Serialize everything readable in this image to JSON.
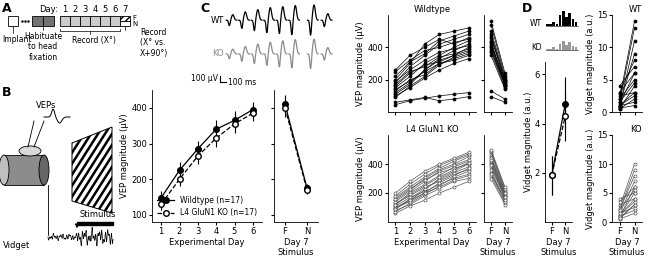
{
  "panel_labels": [
    "A",
    "B",
    "C",
    "D"
  ],
  "timeline": {
    "day_label": "Day:",
    "days": [
      1,
      2,
      3,
      4,
      5,
      6,
      7
    ],
    "implant": "Implant",
    "habituate": "Habituate\nto head\nfixation",
    "record": "Record (X°)",
    "record_day7": "Record\n(X° vs.\nX+90°)",
    "F": "F",
    "N": "N"
  },
  "schematic": {
    "veps": "VEPs",
    "vidget": "Vidget",
    "stimulus": "Stimulus"
  },
  "traces": {
    "wt": "WT",
    "ko": "KO",
    "scale_bars": [
      {
        "label": "100 µV",
        "value": 100
      },
      {
        "label": "100 ms",
        "value": 100
      }
    ]
  },
  "vidget_inset": {
    "wt": "WT",
    "ko": "KO"
  },
  "chart_data": [
    {
      "type": "line",
      "x": [
        1,
        2,
        3,
        4,
        5,
        6
      ],
      "xlim": [
        0.5,
        6.5
      ],
      "xticks": [
        1,
        2,
        3,
        4,
        5,
        6
      ],
      "ylim": [
        80,
        450
      ],
      "yticks": [
        100,
        200,
        300,
        400
      ],
      "xlabel": "Experimental Day",
      "ylabel": "VEP magnitude (µV)",
      "legend": "lower right",
      "series": [
        {
          "name": "Wildtype (n=17)",
          "color": "#000000",
          "marker": "filled_circle",
          "line_style": "solid",
          "values": [
            148,
            225,
            285,
            340,
            365,
            395
          ],
          "errors": [
            18,
            22,
            22,
            25,
            25,
            22
          ]
        },
        {
          "name": "L4 GluN1 KO (n=17)",
          "color": "#000000",
          "marker": "open_circle",
          "line_style": "dashed",
          "values": [
            130,
            200,
            265,
            315,
            355,
            385
          ],
          "errors": [
            15,
            20,
            22,
            25,
            25,
            22
          ]
        }
      ]
    },
    {
      "type": "line",
      "categories": [
        "F",
        "N"
      ],
      "ylim": [
        80,
        450
      ],
      "yticks": [
        100,
        200,
        300,
        400
      ],
      "xlabel": "Day 7\nStimulus",
      "tick_labels": "x",
      "series": [
        {
          "color": "#000000",
          "marker": "filled_circle",
          "line_style": "solid",
          "values": [
            410,
            175
          ],
          "errors": [
            25,
            12
          ]
        },
        {
          "color": "#000000",
          "marker": "open_circle",
          "line_style": "dashed",
          "values": [
            400,
            170
          ],
          "errors": [
            25,
            12
          ]
        }
      ]
    },
    {
      "type": "line",
      "title": "Wildtype",
      "x": [
        1,
        2,
        3,
        4,
        5,
        6
      ],
      "xlim": [
        0.5,
        6.5
      ],
      "xticks": [
        1,
        2,
        3,
        4,
        5,
        6
      ],
      "ylim": [
        0,
        600
      ],
      "yticks": [
        200,
        400
      ],
      "ylabel": "VEP magnitude (µV)",
      "tick_labels": "y",
      "color": "#000000",
      "marker": "filled_circle",
      "series": [
        {
          "values": [
            60,
            75,
            90,
            70,
            80,
            95
          ]
        },
        {
          "values": [
            45,
            70,
            85,
            100,
            110,
            120
          ]
        },
        {
          "values": [
            120,
            180,
            260,
            330,
            380,
            420
          ]
        },
        {
          "values": [
            150,
            220,
            300,
            350,
            400,
            440
          ]
        },
        {
          "values": [
            170,
            250,
            280,
            340,
            360,
            390
          ]
        },
        {
          "values": [
            200,
            300,
            420,
            480,
            500,
            520
          ]
        },
        {
          "values": [
            250,
            320,
            380,
            400,
            430,
            450
          ]
        },
        {
          "values": [
            130,
            200,
            230,
            300,
            320,
            350
          ]
        },
        {
          "values": [
            100,
            150,
            210,
            260,
            300,
            330
          ]
        },
        {
          "values": [
            180,
            280,
            350,
            420,
            450,
            480
          ]
        },
        {
          "values": [
            160,
            240,
            290,
            310,
            350,
            380
          ]
        },
        {
          "values": [
            220,
            310,
            360,
            440,
            470,
            500
          ]
        },
        {
          "values": [
            140,
            190,
            250,
            300,
            330,
            360
          ]
        },
        {
          "values": [
            90,
            160,
            220,
            290,
            340,
            370
          ]
        },
        {
          "values": [
            260,
            350,
            400,
            450,
            420,
            460
          ]
        },
        {
          "values": [
            110,
            170,
            260,
            320,
            350,
            400
          ]
        },
        {
          "values": [
            190,
            260,
            320,
            370,
            390,
            410
          ]
        }
      ]
    },
    {
      "type": "line",
      "categories": [
        "F",
        "N"
      ],
      "ylim": [
        0,
        600
      ],
      "yticks": [
        200,
        400
      ],
      "tick_labels": false,
      "color": "#000000",
      "marker": "filled_circle",
      "series": [
        {
          "values": [
            95,
            60
          ]
        },
        {
          "values": [
            130,
            80
          ]
        },
        {
          "values": [
            430,
            180
          ]
        },
        {
          "values": [
            460,
            200
          ]
        },
        {
          "values": [
            400,
            170
          ]
        },
        {
          "values": [
            540,
            220
          ]
        },
        {
          "values": [
            470,
            190
          ]
        },
        {
          "values": [
            370,
            150
          ]
        },
        {
          "values": [
            350,
            140
          ]
        },
        {
          "values": [
            500,
            210
          ]
        },
        {
          "values": [
            390,
            160
          ]
        },
        {
          "values": [
            560,
            240
          ]
        },
        {
          "values": [
            380,
            170
          ]
        },
        {
          "values": [
            410,
            180
          ]
        },
        {
          "values": [
            480,
            200
          ]
        },
        {
          "values": [
            420,
            190
          ]
        },
        {
          "values": [
            440,
            160
          ]
        }
      ]
    },
    {
      "type": "line",
      "title": "L4 GluN1 KO",
      "x": [
        1,
        2,
        3,
        4,
        5,
        6
      ],
      "xlim": [
        0.5,
        6.5
      ],
      "xticks": [
        1,
        2,
        3,
        4,
        5,
        6
      ],
      "ylim": [
        0,
        600
      ],
      "yticks": [
        200,
        400
      ],
      "xlabel": "Experimental Day",
      "ylabel": "VEP magnitude (µV)",
      "color": "#555555",
      "marker": "open_circle",
      "series": [
        {
          "values": [
            80,
            120,
            180,
            230,
            280,
            300
          ]
        },
        {
          "values": [
            100,
            150,
            220,
            300,
            350,
            400
          ]
        },
        {
          "values": [
            120,
            200,
            260,
            320,
            380,
            420
          ]
        },
        {
          "values": [
            60,
            110,
            150,
            200,
            240,
            280
          ]
        },
        {
          "values": [
            150,
            220,
            300,
            360,
            400,
            450
          ]
        },
        {
          "values": [
            130,
            180,
            240,
            280,
            330,
            360
          ]
        },
        {
          "values": [
            90,
            160,
            230,
            290,
            340,
            380
          ]
        },
        {
          "values": [
            170,
            240,
            310,
            370,
            420,
            460
          ]
        },
        {
          "values": [
            110,
            170,
            210,
            260,
            300,
            330
          ]
        },
        {
          "values": [
            140,
            210,
            280,
            350,
            390,
            430
          ]
        },
        {
          "values": [
            70,
            130,
            190,
            250,
            310,
            350
          ]
        },
        {
          "values": [
            160,
            230,
            290,
            340,
            370,
            400
          ]
        },
        {
          "values": [
            100,
            140,
            200,
            240,
            290,
            320
          ]
        },
        {
          "values": [
            180,
            260,
            330,
            390,
            430,
            470
          ]
        },
        {
          "values": [
            120,
            190,
            250,
            310,
            360,
            410
          ]
        },
        {
          "values": [
            90,
            150,
            200,
            270,
            320,
            370
          ]
        },
        {
          "values": [
            200,
            280,
            350,
            400,
            440,
            480
          ]
        }
      ]
    },
    {
      "type": "line",
      "categories": [
        "F",
        "N"
      ],
      "ylim": [
        0,
        600
      ],
      "yticks": [
        200,
        400
      ],
      "xlabel": "Day 7\nStimulus",
      "tick_labels": "x",
      "color": "#555555",
      "marker": "open_circle",
      "series": [
        {
          "values": [
            320,
            130
          ]
        },
        {
          "values": [
            410,
            180
          ]
        },
        {
          "values": [
            450,
            200
          ]
        },
        {
          "values": [
            300,
            120
          ]
        },
        {
          "values": [
            470,
            210
          ]
        },
        {
          "values": [
            380,
            160
          ]
        },
        {
          "values": [
            400,
            170
          ]
        },
        {
          "values": [
            480,
            220
          ]
        },
        {
          "values": [
            340,
            150
          ]
        },
        {
          "values": [
            440,
            190
          ]
        },
        {
          "values": [
            360,
            140
          ]
        },
        {
          "values": [
            420,
            180
          ]
        },
        {
          "values": [
            330,
            150
          ]
        },
        {
          "values": [
            490,
            230
          ]
        },
        {
          "values": [
            430,
            200
          ]
        },
        {
          "values": [
            390,
            170
          ]
        },
        {
          "values": [
            500,
            240
          ]
        }
      ]
    },
    {
      "type": "line",
      "categories": [
        "F",
        "N"
      ],
      "ylim": [
        0,
        6.5
      ],
      "yticks": [
        2,
        4,
        6
      ],
      "xlabel": "Day 7\nStimulus",
      "ylabel": "Vidget magnitude (a.u.)",
      "series": [
        {
          "color": "#000000",
          "marker": "filled_circle",
          "line_style": "solid",
          "values": [
            1.9,
            4.8
          ],
          "errors": [
            0.8,
            1.1
          ]
        },
        {
          "color": "#000000",
          "marker": "open_circle",
          "line_style": "dashed",
          "values": [
            1.9,
            4.3
          ],
          "errors": [
            0.8,
            1.0
          ]
        }
      ]
    },
    {
      "type": "line",
      "title": "WT",
      "categories": [
        "F",
        "N"
      ],
      "ylim": [
        0,
        15
      ],
      "yticks": [
        0,
        5,
        10,
        15
      ],
      "ylabel": "Vidget magnitude (a.u.)",
      "tick_labels": "y",
      "color": "#000000",
      "marker": "filled_circle",
      "series": [
        {
          "values": [
            1,
            3
          ]
        },
        {
          "values": [
            0.5,
            2
          ]
        },
        {
          "values": [
            2,
            14
          ]
        },
        {
          "values": [
            1.5,
            13
          ]
        },
        {
          "values": [
            1,
            9
          ]
        },
        {
          "values": [
            3,
            6
          ]
        },
        {
          "values": [
            0.5,
            4
          ]
        },
        {
          "values": [
            2,
            5
          ]
        },
        {
          "values": [
            1,
            2.5
          ]
        },
        {
          "values": [
            4,
            7
          ]
        },
        {
          "values": [
            1,
            1.5
          ]
        },
        {
          "values": [
            2.5,
            3
          ]
        },
        {
          "values": [
            0.8,
            11
          ]
        },
        {
          "values": [
            1.2,
            6
          ]
        },
        {
          "values": [
            3,
            8
          ]
        },
        {
          "values": [
            0.6,
            1
          ]
        },
        {
          "values": [
            1.5,
            4.5
          ]
        }
      ]
    },
    {
      "type": "line",
      "title": "KO",
      "categories": [
        "F",
        "N"
      ],
      "ylim": [
        0,
        15
      ],
      "yticks": [
        0,
        5,
        10,
        15
      ],
      "xlabel": "Day 7\nStimulus",
      "ylabel": "Vidget magnitude (a.u.)",
      "color": "#555555",
      "marker": "open_circle",
      "series": [
        {
          "values": [
            1,
            5
          ]
        },
        {
          "values": [
            2,
            9
          ]
        },
        {
          "values": [
            0.5,
            3
          ]
        },
        {
          "values": [
            1.5,
            7
          ]
        },
        {
          "values": [
            3,
            4
          ]
        },
        {
          "values": [
            1,
            2
          ]
        },
        {
          "values": [
            2.5,
            10
          ]
        },
        {
          "values": [
            0.8,
            6
          ]
        },
        {
          "values": [
            1.2,
            3.5
          ]
        },
        {
          "values": [
            4,
            5
          ]
        },
        {
          "values": [
            0.5,
            1.5
          ]
        },
        {
          "values": [
            2,
            8
          ]
        },
        {
          "values": [
            1,
            4
          ]
        },
        {
          "values": [
            3.5,
            6
          ]
        },
        {
          "values": [
            1.5,
            2.5
          ]
        },
        {
          "values": [
            0.7,
            3
          ]
        },
        {
          "values": [
            2,
            5.5
          ]
        }
      ]
    }
  ]
}
